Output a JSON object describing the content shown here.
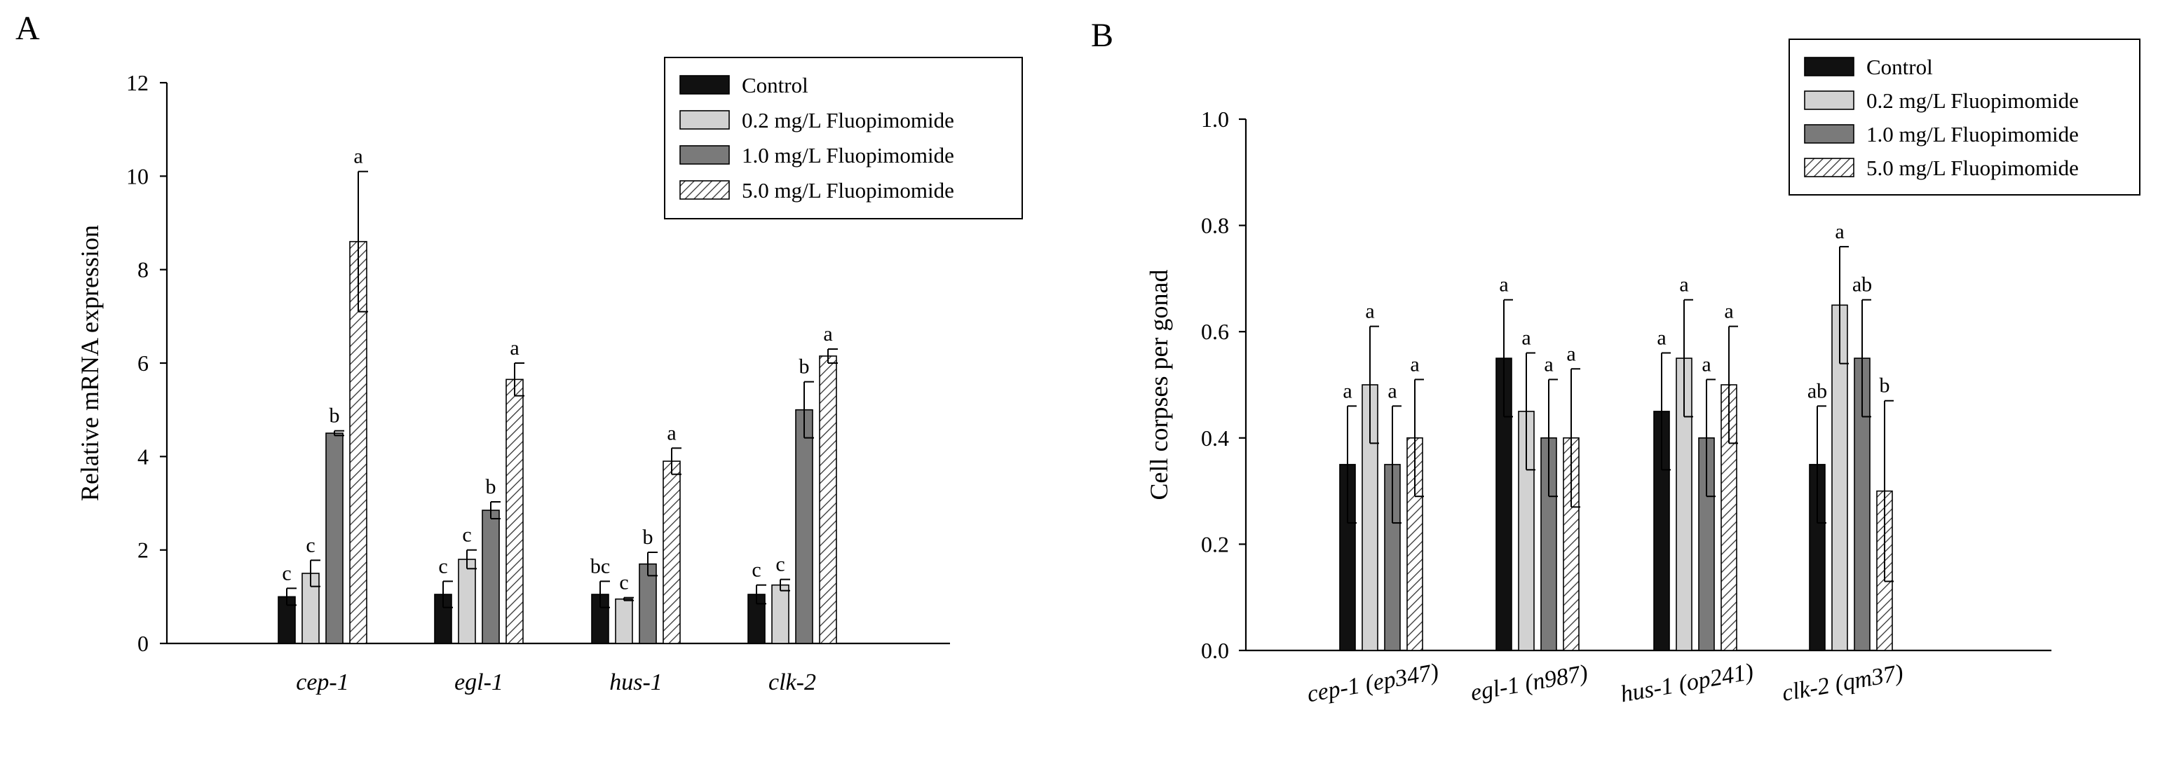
{
  "series_styles": [
    {
      "fill": "#111111",
      "pattern": "none"
    },
    {
      "fill": "#d2d2d2",
      "pattern": "none"
    },
    {
      "fill": "#7a7a7a",
      "pattern": "none"
    },
    {
      "fill": "#ffffff",
      "pattern": "hatch"
    }
  ],
  "chart_data": [
    {
      "panel_label": "A",
      "type": "bar",
      "title": "",
      "xlabel": "",
      "ylabel": "Relative mRNA expression",
      "ylim": [
        0,
        12
      ],
      "yticks": [
        0,
        2,
        4,
        6,
        8,
        10,
        12
      ],
      "legend_position": "top-right",
      "categories": [
        "cep-1",
        "egl-1",
        "hus-1",
        "clk-2"
      ],
      "series": [
        {
          "name": "Control",
          "values": [
            1.0,
            1.05,
            1.05,
            1.05
          ],
          "errors": [
            0.18,
            0.28,
            0.28,
            0.2
          ],
          "labels": [
            "c",
            "c",
            "bc",
            "c"
          ]
        },
        {
          "name": "0.2 mg/L Fluopimomide",
          "values": [
            1.5,
            1.8,
            0.95,
            1.25
          ],
          "errors": [
            0.28,
            0.2,
            0.03,
            0.12
          ],
          "labels": [
            "c",
            "c",
            "c",
            "c"
          ]
        },
        {
          "name": "1.0 mg/L Fluopimomide",
          "values": [
            4.5,
            2.85,
            1.7,
            5.0
          ],
          "errors": [
            0.05,
            0.18,
            0.25,
            0.6
          ],
          "labels": [
            "b",
            "b",
            "b",
            "b"
          ]
        },
        {
          "name": "5.0 mg/L Fluopimomide",
          "values": [
            8.6,
            5.65,
            3.9,
            6.15
          ],
          "errors": [
            1.5,
            0.35,
            0.28,
            0.15
          ],
          "labels": [
            "a",
            "a",
            "a",
            "a"
          ]
        }
      ]
    },
    {
      "panel_label": "B",
      "type": "bar",
      "title": "",
      "xlabel": "",
      "ylabel": "Cell corpses per gonad",
      "ylim": [
        0,
        1.0
      ],
      "yticks": [
        "0.0",
        "0.2",
        "0.4",
        "0.6",
        "0.8",
        "1.0"
      ],
      "legend_position": "top-right",
      "categories": [
        "cep-1 (ep347)",
        "egl-1 (n987)",
        "hus-1 (op241)",
        "clk-2 (qm37)"
      ],
      "series": [
        {
          "name": "Control",
          "values": [
            0.35,
            0.55,
            0.45,
            0.35
          ],
          "errors": [
            0.11,
            0.11,
            0.11,
            0.11
          ],
          "labels": [
            "a",
            "a",
            "a",
            "ab"
          ]
        },
        {
          "name": "0.2 mg/L Fluopimomide",
          "values": [
            0.5,
            0.45,
            0.55,
            0.65
          ],
          "errors": [
            0.11,
            0.11,
            0.11,
            0.11
          ],
          "labels": [
            "a",
            "a",
            "a",
            "a"
          ]
        },
        {
          "name": "1.0 mg/L Fluopimomide",
          "values": [
            0.35,
            0.4,
            0.4,
            0.55
          ],
          "errors": [
            0.11,
            0.11,
            0.11,
            0.11
          ],
          "labels": [
            "a",
            "a",
            "a",
            "ab"
          ]
        },
        {
          "name": "5.0 mg/L Fluopimomide",
          "values": [
            0.4,
            0.4,
            0.5,
            0.3
          ],
          "errors": [
            0.11,
            0.13,
            0.11,
            0.17
          ],
          "labels": [
            "a",
            "a",
            "a",
            "b"
          ]
        }
      ]
    }
  ]
}
